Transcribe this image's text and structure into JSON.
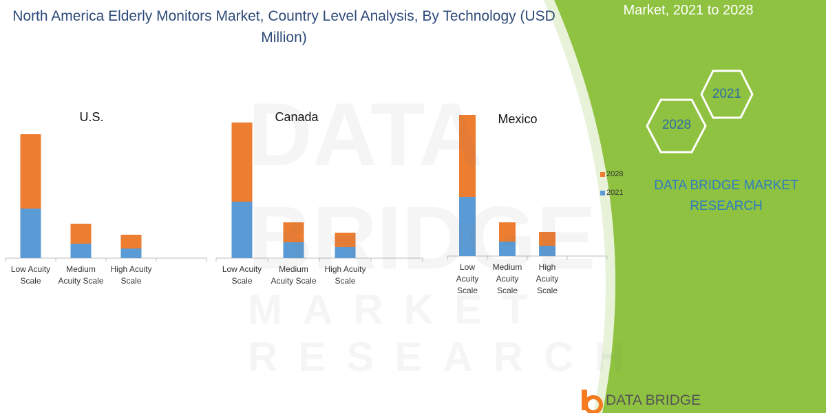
{
  "title": "North America Elderly Monitors Market, Country Level Analysis, By Technology (USD Million)",
  "panel": {
    "heading": "Market, 2021 to 2028",
    "badges": [
      "2021",
      "2028"
    ],
    "brand": "DATA BRIDGE MARKET RESEARCH",
    "logo": "DATA BRIDGE"
  },
  "watermark": [
    "DATA BRIDGE",
    "MARKET RESEARCH"
  ],
  "chart_data": [
    {
      "type": "bar",
      "stacked": true,
      "title": "U.S.",
      "categories": [
        "Low Acuity Scale",
        "Medium Acuity Scale",
        "High Acuity Scale"
      ],
      "series": [
        {
          "color": "#5b9bd5",
          "values": [
            72,
            21,
            14
          ]
        },
        {
          "color": "#ed7d31",
          "values": [
            108,
            29,
            20
          ]
        }
      ]
    },
    {
      "type": "bar",
      "stacked": true,
      "title": "Canada",
      "categories": [
        "Low Acuity Scale",
        "Medium Acuity Scale",
        "High Acuity Scale"
      ],
      "series": [
        {
          "color": "#5b9bd5",
          "values": [
            82,
            23,
            16
          ]
        },
        {
          "color": "#ed7d31",
          "values": [
            115,
            29,
            21
          ]
        }
      ]
    },
    {
      "type": "bar",
      "stacked": true,
      "title": "Mexico",
      "categories": [
        "Low Acuity Scale",
        "Medium Acuity Scale",
        "High Acuity Scale"
      ],
      "series": [
        {
          "name": "2021",
          "color": "#5b9bd5",
          "values": [
            86,
            21,
            15
          ]
        },
        {
          "name": "2028",
          "color": "#ed7d31",
          "values": [
            119,
            28,
            20
          ]
        }
      ]
    }
  ]
}
